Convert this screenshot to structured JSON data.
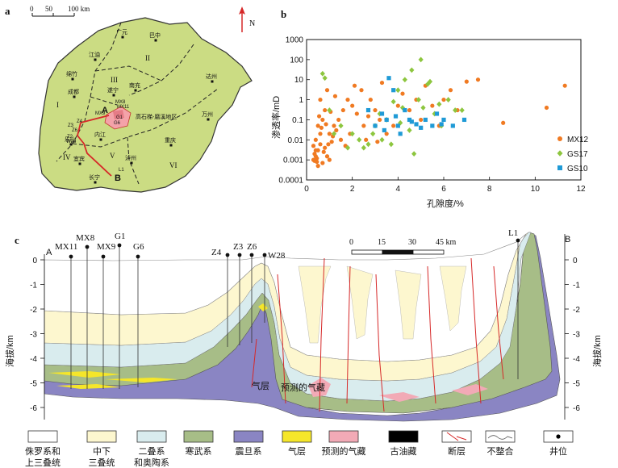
{
  "panel_a": {
    "label": "a",
    "scale_ticks": [
      "0",
      "50",
      "100 km"
    ],
    "north_label": "N",
    "cities": [
      "广元",
      "巴中",
      "江油",
      "绵竹",
      "成都",
      "遂宁",
      "南充",
      "达州",
      "万州",
      "内江",
      "乐山",
      "重庆",
      "宜宾",
      "泸州",
      "长宁"
    ],
    "regions": [
      "I",
      "II",
      "III",
      "IV",
      "V",
      "VI"
    ],
    "wells": [
      "Z4",
      "Z3",
      "Z6",
      "Z2",
      "W28",
      "MX9",
      "MX8",
      "MX11",
      "G1",
      "G6",
      "L1"
    ],
    "area_label": "高石梯-磨溪地区",
    "section_ends": {
      "a": "A",
      "b": "B"
    }
  },
  "panel_b": {
    "label": "b",
    "ylabel": "渗透率/mD",
    "xlabel": "孔隙度/%",
    "yticks": [
      "0.0001",
      "0.001",
      "0.01",
      "0.1",
      "1",
      "10",
      "100",
      "1000"
    ],
    "xticks": [
      "0",
      "2",
      "4",
      "6",
      "8",
      "10",
      "12"
    ],
    "legend": [
      "MX12",
      "GS17",
      "GS10"
    ]
  },
  "chart_data": {
    "type": "scatter",
    "xlabel": "孔隙度/%",
    "ylabel": "渗透率/mD",
    "xlim": [
      0,
      12
    ],
    "ylim": [
      0.0001,
      1000
    ],
    "yscale": "log",
    "legend_position": "right",
    "series": [
      {
        "name": "MX12",
        "color": "#f07a22",
        "marker": "circle",
        "points": [
          [
            0.3,
            0.001
          ],
          [
            0.35,
            0.002
          ],
          [
            0.4,
            0.0015
          ],
          [
            0.45,
            0.0008
          ],
          [
            0.5,
            0.003
          ],
          [
            0.3,
            0.005
          ],
          [
            0.4,
            0.01
          ],
          [
            0.6,
            0.02
          ],
          [
            0.5,
            0.05
          ],
          [
            0.7,
            0.1
          ],
          [
            0.8,
            0.3
          ],
          [
            0.6,
            1
          ],
          [
            0.9,
            3
          ],
          [
            1.0,
            0.02
          ],
          [
            1.1,
            0.008
          ],
          [
            1.2,
            0.05
          ],
          [
            0.8,
            0.004
          ],
          [
            0.9,
            0.0015
          ],
          [
            1.0,
            0.001
          ],
          [
            0.7,
            0.0007
          ],
          [
            0.5,
            0.0005
          ],
          [
            1.4,
            0.1
          ],
          [
            1.6,
            0.3
          ],
          [
            1.8,
            1
          ],
          [
            2.0,
            0.5
          ],
          [
            1.3,
            0.03
          ],
          [
            2.2,
            0.2
          ],
          [
            2.5,
            0.05
          ],
          [
            2.4,
            3
          ],
          [
            2.8,
            1
          ],
          [
            3.0,
            0.3
          ],
          [
            3.2,
            0.1
          ],
          [
            3.5,
            0.02
          ],
          [
            3.8,
            0.05
          ],
          [
            4.0,
            0.5
          ],
          [
            4.2,
            2
          ],
          [
            4.5,
            0.3
          ],
          [
            4.8,
            1
          ],
          [
            5.0,
            0.1
          ],
          [
            5.2,
            5
          ],
          [
            5.5,
            0.5
          ],
          [
            5.8,
            0.05
          ],
          [
            6.0,
            1
          ],
          [
            6.3,
            3
          ],
          [
            6.6,
            0.3
          ],
          [
            7.0,
            8
          ],
          [
            7.5,
            10
          ],
          [
            8.6,
            0.07
          ],
          [
            10.5,
            0.4
          ],
          [
            11.3,
            5
          ],
          [
            1.5,
            0.01
          ],
          [
            1.7,
            0.005
          ],
          [
            0.6,
            0.006
          ],
          [
            0.4,
            0.003
          ],
          [
            1.9,
            0.02
          ],
          [
            2.6,
            0.01
          ],
          [
            3.1,
            0.008
          ],
          [
            0.55,
            0.15
          ],
          [
            0.65,
            0.04
          ],
          [
            1.25,
            1.5
          ],
          [
            2.1,
            5
          ],
          [
            3.3,
            7
          ],
          [
            0.85,
            0.06
          ],
          [
            1.05,
            0.25
          ],
          [
            0.45,
            0.0012
          ],
          [
            0.35,
            0.0009
          ],
          [
            0.75,
            0.0025
          ],
          [
            0.95,
            0.006
          ],
          [
            1.15,
            0.015
          ],
          [
            2.7,
            0.15
          ]
        ]
      },
      {
        "name": "GS17",
        "color": "#8dc63f",
        "marker": "diamond",
        "points": [
          [
            0.7,
            20
          ],
          [
            0.8,
            12
          ],
          [
            1.0,
            0.3
          ],
          [
            1.5,
            0.05
          ],
          [
            2.0,
            0.02
          ],
          [
            2.3,
            0.01
          ],
          [
            2.7,
            0.006
          ],
          [
            3.0,
            0.05
          ],
          [
            3.3,
            0.01
          ],
          [
            3.5,
            0.1
          ],
          [
            3.8,
            0.8
          ],
          [
            4.0,
            3
          ],
          [
            4.3,
            10
          ],
          [
            4.6,
            30
          ],
          [
            4.9,
            1
          ],
          [
            5.0,
            100
          ],
          [
            5.3,
            6
          ],
          [
            5.6,
            0.2
          ],
          [
            5.9,
            0.05
          ],
          [
            6.2,
            1
          ],
          [
            6.5,
            0.3
          ],
          [
            1.2,
            0.02
          ],
          [
            2.5,
            0.004
          ],
          [
            4.5,
            0.03
          ],
          [
            5.1,
            0.4
          ],
          [
            3.7,
            0.006
          ],
          [
            4.1,
            0.07
          ],
          [
            5.8,
            0.6
          ],
          [
            6.8,
            0.3
          ],
          [
            1.8,
            0.004
          ],
          [
            2.9,
            0.02
          ],
          [
            3.2,
            0.2
          ],
          [
            4.7,
            0.002
          ],
          [
            5.4,
            8
          ],
          [
            4.2,
            0.4
          ]
        ]
      },
      {
        "name": "GS10",
        "color": "#1f9ad6",
        "marker": "square",
        "points": [
          [
            2.7,
            0.3
          ],
          [
            3.0,
            0.05
          ],
          [
            3.3,
            0.2
          ],
          [
            3.5,
            0.1
          ],
          [
            3.6,
            12
          ],
          [
            3.8,
            3
          ],
          [
            4.0,
            0.05
          ],
          [
            4.1,
            0.02
          ],
          [
            4.3,
            0.3
          ],
          [
            4.5,
            0.1
          ],
          [
            4.8,
            0.06
          ],
          [
            5.0,
            0.04
          ],
          [
            5.2,
            0.1
          ],
          [
            5.5,
            0.05
          ],
          [
            5.7,
            0.2
          ],
          [
            6.0,
            0.1
          ],
          [
            6.4,
            0.05
          ],
          [
            6.9,
            0.1
          ],
          [
            3.4,
            0.03
          ],
          [
            4.6,
            0.08
          ],
          [
            5.9,
            0.06
          ],
          [
            3.9,
            0.15
          ]
        ]
      }
    ]
  },
  "panel_c": {
    "label": "c",
    "end_left": "A",
    "end_right": "B",
    "ylabel_left": "海拔/km",
    "ylabel_right": "海拔/km",
    "yticks": [
      "0",
      "-1",
      "-2",
      "-3",
      "-4",
      "-5",
      "-6"
    ],
    "scale_ticks": [
      "0",
      "15",
      "30",
      "45 km"
    ],
    "wells": [
      {
        "name": "MX11"
      },
      {
        "name": "MX8"
      },
      {
        "name": "MX9"
      },
      {
        "name": "G1"
      },
      {
        "name": "G6"
      },
      {
        "name": "Z4"
      },
      {
        "name": "Z3"
      },
      {
        "name": "Z6"
      },
      {
        "name": "W28"
      },
      {
        "name": "L1"
      }
    ],
    "annotations": [
      "气层",
      "预测的气藏"
    ],
    "legend": [
      {
        "label_l1": "侏罗系和",
        "label_l2": "上三叠统",
        "color": "#ffffff"
      },
      {
        "label_l1": "中下",
        "label_l2": "三叠统",
        "color": "#fdf7cf"
      },
      {
        "label_l1": "二叠系",
        "label_l2": "和奥陶系",
        "color": "#d9ecee"
      },
      {
        "label_l1": "寒武系",
        "label_l2": "",
        "color": "#a7bd87"
      },
      {
        "label_l1": "震旦系",
        "label_l2": "",
        "color": "#8a85c3"
      },
      {
        "label_l1": "气层",
        "label_l2": "",
        "color": "#f5e62a"
      },
      {
        "label_l1": "预测的气藏",
        "label_l2": "",
        "color": "#f2aab6"
      },
      {
        "label_l1": "古油藏",
        "label_l2": "",
        "color": "#000000"
      },
      {
        "label_l1": "断层",
        "label_l2": "",
        "color": "#d62828"
      },
      {
        "label_l1": "不整合",
        "label_l2": "",
        "color": "#555555"
      },
      {
        "label_l1": "井位",
        "label_l2": "",
        "color": "#000000"
      }
    ]
  }
}
